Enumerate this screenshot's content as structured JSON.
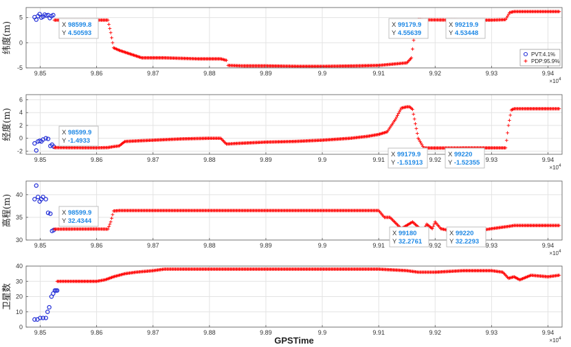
{
  "figure": {
    "xlabel": "GPSTime",
    "x_exponent": "×10",
    "x_exponent_power": "4"
  },
  "colors": {
    "pvt": "#1f2bd6",
    "pdp": "#ff0000",
    "grid": "#e3e3e3",
    "axis": "#555555",
    "datatip_value": "#1e88e5"
  },
  "chart_data": [
    {
      "type": "scatter",
      "ylabel": "纬度(m)",
      "xlim": [
        98475,
        99425
      ],
      "ylim": [
        -5,
        7
      ],
      "xticks": [
        9.85,
        9.86,
        9.87,
        9.88,
        9.89,
        9.9,
        9.91,
        9.92,
        9.93,
        9.94
      ],
      "yticks": [
        -5,
        0,
        5
      ],
      "grid": true,
      "legend": {
        "placement": "right",
        "entries": [
          "PVT:4.1%",
          "PDP:95.9%"
        ]
      },
      "series": [
        {
          "marker": "circle",
          "color": "#1f2bd6",
          "x": [
            98490,
            98493,
            98496,
            98499,
            98502,
            98505,
            98508,
            98511,
            98514,
            98517,
            98520,
            98523
          ],
          "y": [
            5.1,
            4.6,
            5.3,
            5.7,
            5.0,
            5.2,
            5.6,
            5.4,
            5.5,
            4.9,
            5.3,
            5.5
          ]
        },
        {
          "marker": "plus",
          "color": "#ff0000",
          "x": [
            98525,
            98599.8,
            98600,
            98620,
            98625,
            98630,
            98640,
            98680,
            98720,
            98780,
            98820,
            98830,
            98833,
            98860,
            98900,
            98960,
            99000,
            99060,
            99100,
            99130,
            99150,
            99158,
            99162,
            99165,
            99170,
            99179.9,
            99219.9,
            99260,
            99300,
            99325,
            99332,
            99340,
            99360,
            99380,
            99400,
            99420
          ],
          "y": [
            4.5,
            4.51,
            4.5,
            4.5,
            2.0,
            -1.0,
            -1.5,
            -3.0,
            -3.0,
            -3.2,
            -3.2,
            -3.5,
            -4.5,
            -4.6,
            -4.6,
            -4.7,
            -4.7,
            -4.6,
            -4.5,
            -4.2,
            -4.0,
            -3.0,
            0.5,
            4.0,
            4.6,
            4.56,
            4.53,
            4.5,
            4.5,
            4.6,
            6.0,
            6.2,
            6.2,
            6.2,
            6.2,
            6.2
          ]
        }
      ],
      "datatips": [
        {
          "x_label": "X",
          "x": "98599.8",
          "y_label": "Y",
          "y": "4.50593"
        },
        {
          "x_label": "X",
          "x": "99179.9",
          "y_label": "Y",
          "y": "4.55639"
        },
        {
          "x_label": "X",
          "x": "99219.9",
          "y_label": "Y",
          "y": "4.53448"
        }
      ]
    },
    {
      "type": "scatter",
      "ylabel": "经度(m)",
      "xlim": [
        98475,
        99425
      ],
      "ylim": [
        -2.5,
        6.8
      ],
      "xticks": [
        9.85,
        9.86,
        9.87,
        9.88,
        9.89,
        9.9,
        9.91,
        9.92,
        9.93,
        9.94
      ],
      "yticks": [
        -2,
        0,
        2,
        4,
        6
      ],
      "grid": true,
      "series": [
        {
          "marker": "circle",
          "color": "#1f2bd6",
          "x": [
            98490,
            98493,
            98496,
            98499,
            98502,
            98505,
            98510,
            98514,
            98518,
            98521,
            98524
          ],
          "y": [
            -0.8,
            -1.9,
            -0.5,
            -0.4,
            -0.5,
            -0.2,
            0.0,
            -0.1,
            -1.2,
            -1.0,
            -1.3
          ]
        },
        {
          "marker": "plus",
          "color": "#ff0000",
          "x": [
            98525,
            98599.9,
            98620,
            98630,
            98640,
            98650,
            98700,
            98750,
            98800,
            98820,
            98830,
            98850,
            98900,
            98950,
            99000,
            99050,
            99080,
            99100,
            99115,
            99130,
            99140,
            99150,
            99155,
            99160,
            99170,
            99179.9,
            99220,
            99260,
            99300,
            99325,
            99330,
            99335,
            99340,
            99360,
            99400,
            99420
          ],
          "y": [
            -1.45,
            -1.49,
            -1.45,
            -1.3,
            -1.2,
            -0.5,
            -0.3,
            -0.1,
            0.0,
            0.0,
            -0.9,
            -0.8,
            -0.6,
            -0.5,
            -0.3,
            0.0,
            0.3,
            0.6,
            1.0,
            3.0,
            4.7,
            4.9,
            4.9,
            4.5,
            0.0,
            -1.52,
            -1.52,
            -1.5,
            -1.5,
            -1.5,
            2.0,
            4.4,
            4.6,
            4.6,
            4.6,
            4.6
          ]
        }
      ],
      "datatips": [
        {
          "x_label": "X",
          "x": "98599.9",
          "y_label": "Y",
          "y": "-1.4933"
        },
        {
          "x_label": "X",
          "x": "99179.9",
          "y_label": "Y",
          "y": "-1.51913"
        },
        {
          "x_label": "X",
          "x": "99220",
          "y_label": "Y",
          "y": "-1.52355"
        }
      ]
    },
    {
      "type": "scatter",
      "ylabel": "高程(m)",
      "xlim": [
        98475,
        99425
      ],
      "ylim": [
        30,
        43
      ],
      "xticks": [
        9.85,
        9.86,
        9.87,
        9.88,
        9.89,
        9.9,
        9.91,
        9.92,
        9.93,
        9.94
      ],
      "yticks": [
        30,
        35,
        40
      ],
      "grid": true,
      "series": [
        {
          "marker": "circle",
          "color": "#1f2bd6",
          "x": [
            98490,
            98493,
            98496,
            98499,
            98502,
            98505,
            98510,
            98514,
            98518,
            98521,
            98524
          ],
          "y": [
            39.0,
            42.0,
            39.5,
            38.5,
            39.0,
            39.5,
            39.0,
            36.0,
            35.8,
            32.0,
            32.2
          ]
        },
        {
          "marker": "plus",
          "color": "#ff0000",
          "x": [
            98525,
            98599.9,
            98620,
            98625,
            98630,
            98640,
            98700,
            98800,
            98900,
            99000,
            99100,
            99110,
            99120,
            99140,
            99160,
            99175,
            99180,
            99185,
            99195,
            99200,
            99210,
            99220,
            99250,
            99290,
            99300,
            99330,
            99340,
            99360,
            99400,
            99420
          ],
          "y": [
            32.4,
            32.43,
            32.4,
            34.0,
            36.4,
            36.5,
            36.5,
            36.5,
            36.5,
            36.5,
            36.5,
            35.0,
            35.0,
            32.5,
            34.0,
            32.3,
            32.28,
            33.5,
            32.5,
            34.0,
            32.5,
            32.23,
            32.3,
            32.3,
            32.5,
            33.0,
            33.2,
            33.2,
            33.2,
            33.2
          ]
        }
      ],
      "datatips": [
        {
          "x_label": "X",
          "x": "98599.9",
          "y_label": "Y",
          "y": "32.4344"
        },
        {
          "x_label": "X",
          "x": "99180",
          "y_label": "Y",
          "y": "32.2761"
        },
        {
          "x_label": "X",
          "x": "99220",
          "y_label": "Y",
          "y": "32.2293"
        }
      ]
    },
    {
      "type": "scatter",
      "ylabel": "卫星数",
      "xlabel": "GPSTime",
      "xlim": [
        98475,
        99425
      ],
      "ylim": [
        0,
        40
      ],
      "xticks": [
        9.85,
        9.86,
        9.87,
        9.88,
        9.89,
        9.9,
        9.91,
        9.92,
        9.93,
        9.94
      ],
      "yticks": [
        0,
        10,
        20,
        30,
        40
      ],
      "grid": true,
      "series": [
        {
          "marker": "circle",
          "color": "#1f2bd6",
          "x": [
            98490,
            98495,
            98500,
            98505,
            98510,
            98513,
            98516,
            98520,
            98523,
            98526,
            98528,
            98530
          ],
          "y": [
            5,
            5,
            6,
            6,
            6,
            10,
            13,
            20,
            22,
            24,
            24,
            24
          ]
        },
        {
          "marker": "plus",
          "color": "#ff0000",
          "x": [
            98530,
            98560,
            98600,
            98615,
            98630,
            98650,
            98670,
            98700,
            98720,
            98750,
            98800,
            98900,
            99000,
            99100,
            99150,
            99170,
            99200,
            99250,
            99300,
            99320,
            99330,
            99340,
            99350,
            99370,
            99400,
            99420
          ],
          "y": [
            30,
            30,
            30,
            31,
            33,
            35,
            36,
            37,
            38,
            38,
            38,
            38,
            38,
            38,
            37,
            36,
            36,
            37,
            37,
            36,
            32,
            33,
            31,
            34,
            33,
            34
          ]
        }
      ]
    }
  ]
}
